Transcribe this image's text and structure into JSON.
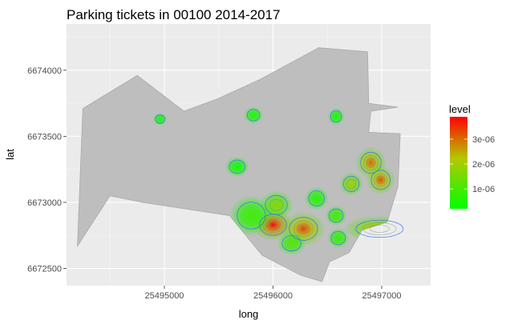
{
  "chart_data": {
    "type": "heatmap",
    "subtype": "2d-density-map",
    "title": "Parking tickets in 00100 2014-2017",
    "xlabel": "long",
    "ylabel": "lat",
    "xlim": [
      25494100,
      25497450
    ],
    "ylim": [
      6672370,
      6674350
    ],
    "x_ticks": [
      25495000,
      25496000,
      25497000
    ],
    "y_ticks": [
      6672500,
      6673000,
      6673500,
      6674000
    ],
    "grid": true,
    "legend": {
      "title": "level",
      "position": "right",
      "labels": [
        "3e-06",
        "2e-06",
        "1e-06"
      ],
      "breaks": [
        3e-06,
        2e-06,
        1e-06
      ],
      "range": [
        2e-07,
        3.9e-06
      ],
      "colors": {
        "low": "#00ff00",
        "high": "#ff0000"
      }
    },
    "region_polygon": [
      [
        25494200,
        6672670
      ],
      [
        25494250,
        6673710
      ],
      [
        25494750,
        6673960
      ],
      [
        25495180,
        6673690
      ],
      [
        25495480,
        6673780
      ],
      [
        25495880,
        6673930
      ],
      [
        25496420,
        6674170
      ],
      [
        25496870,
        6674140
      ],
      [
        25496880,
        6673750
      ],
      [
        25497150,
        6673720
      ],
      [
        25496900,
        6673690
      ],
      [
        25496880,
        6673530
      ],
      [
        25497170,
        6673520
      ],
      [
        25497150,
        6673120
      ],
      [
        25497050,
        6672850
      ],
      [
        25496820,
        6672790
      ],
      [
        25496700,
        6672620
      ],
      [
        25496520,
        6672550
      ],
      [
        25496450,
        6672400
      ],
      [
        25496250,
        6672450
      ],
      [
        25495900,
        6672600
      ],
      [
        25495600,
        6672900
      ],
      [
        25494800,
        6673000
      ],
      [
        25494500,
        6673050
      ]
    ],
    "hotspots": [
      {
        "x": 25496000,
        "y": 6672830,
        "sx": 85,
        "sy": 55,
        "density": 3.9e-06
      },
      {
        "x": 25496280,
        "y": 6672800,
        "sx": 90,
        "sy": 60,
        "density": 3.4e-06
      },
      {
        "x": 25496030,
        "y": 6672980,
        "sx": 70,
        "sy": 50,
        "density": 1.8e-06
      },
      {
        "x": 25496170,
        "y": 6672690,
        "sx": 60,
        "sy": 40,
        "density": 1.2e-06
      },
      {
        "x": 25496900,
        "y": 6673300,
        "sx": 65,
        "sy": 55,
        "density": 3.1e-06
      },
      {
        "x": 25496990,
        "y": 6673170,
        "sx": 60,
        "sy": 50,
        "density": 3.3e-06
      },
      {
        "x": 25496980,
        "y": 6672800,
        "sx": 150,
        "sy": 45,
        "density": 2.6e-06
      },
      {
        "x": 25496720,
        "y": 6673140,
        "sx": 50,
        "sy": 40,
        "density": 2.2e-06
      },
      {
        "x": 25496580,
        "y": 6672900,
        "sx": 45,
        "sy": 35,
        "density": 1e-06
      },
      {
        "x": 25495800,
        "y": 6672900,
        "sx": 90,
        "sy": 70,
        "density": 9e-07
      },
      {
        "x": 25496600,
        "y": 6672730,
        "sx": 45,
        "sy": 35,
        "density": 9e-07
      },
      {
        "x": 25496400,
        "y": 6673030,
        "sx": 50,
        "sy": 40,
        "density": 7e-07
      },
      {
        "x": 25495820,
        "y": 6673660,
        "sx": 40,
        "sy": 30,
        "density": 5e-07
      },
      {
        "x": 25495670,
        "y": 6673270,
        "sx": 50,
        "sy": 35,
        "density": 3.5e-07
      },
      {
        "x": 25494960,
        "y": 6673630,
        "sx": 30,
        "sy": 22,
        "density": 4e-07
      },
      {
        "x": 25496580,
        "y": 6673650,
        "sx": 35,
        "sy": 30,
        "density": 4.5e-07
      }
    ]
  }
}
